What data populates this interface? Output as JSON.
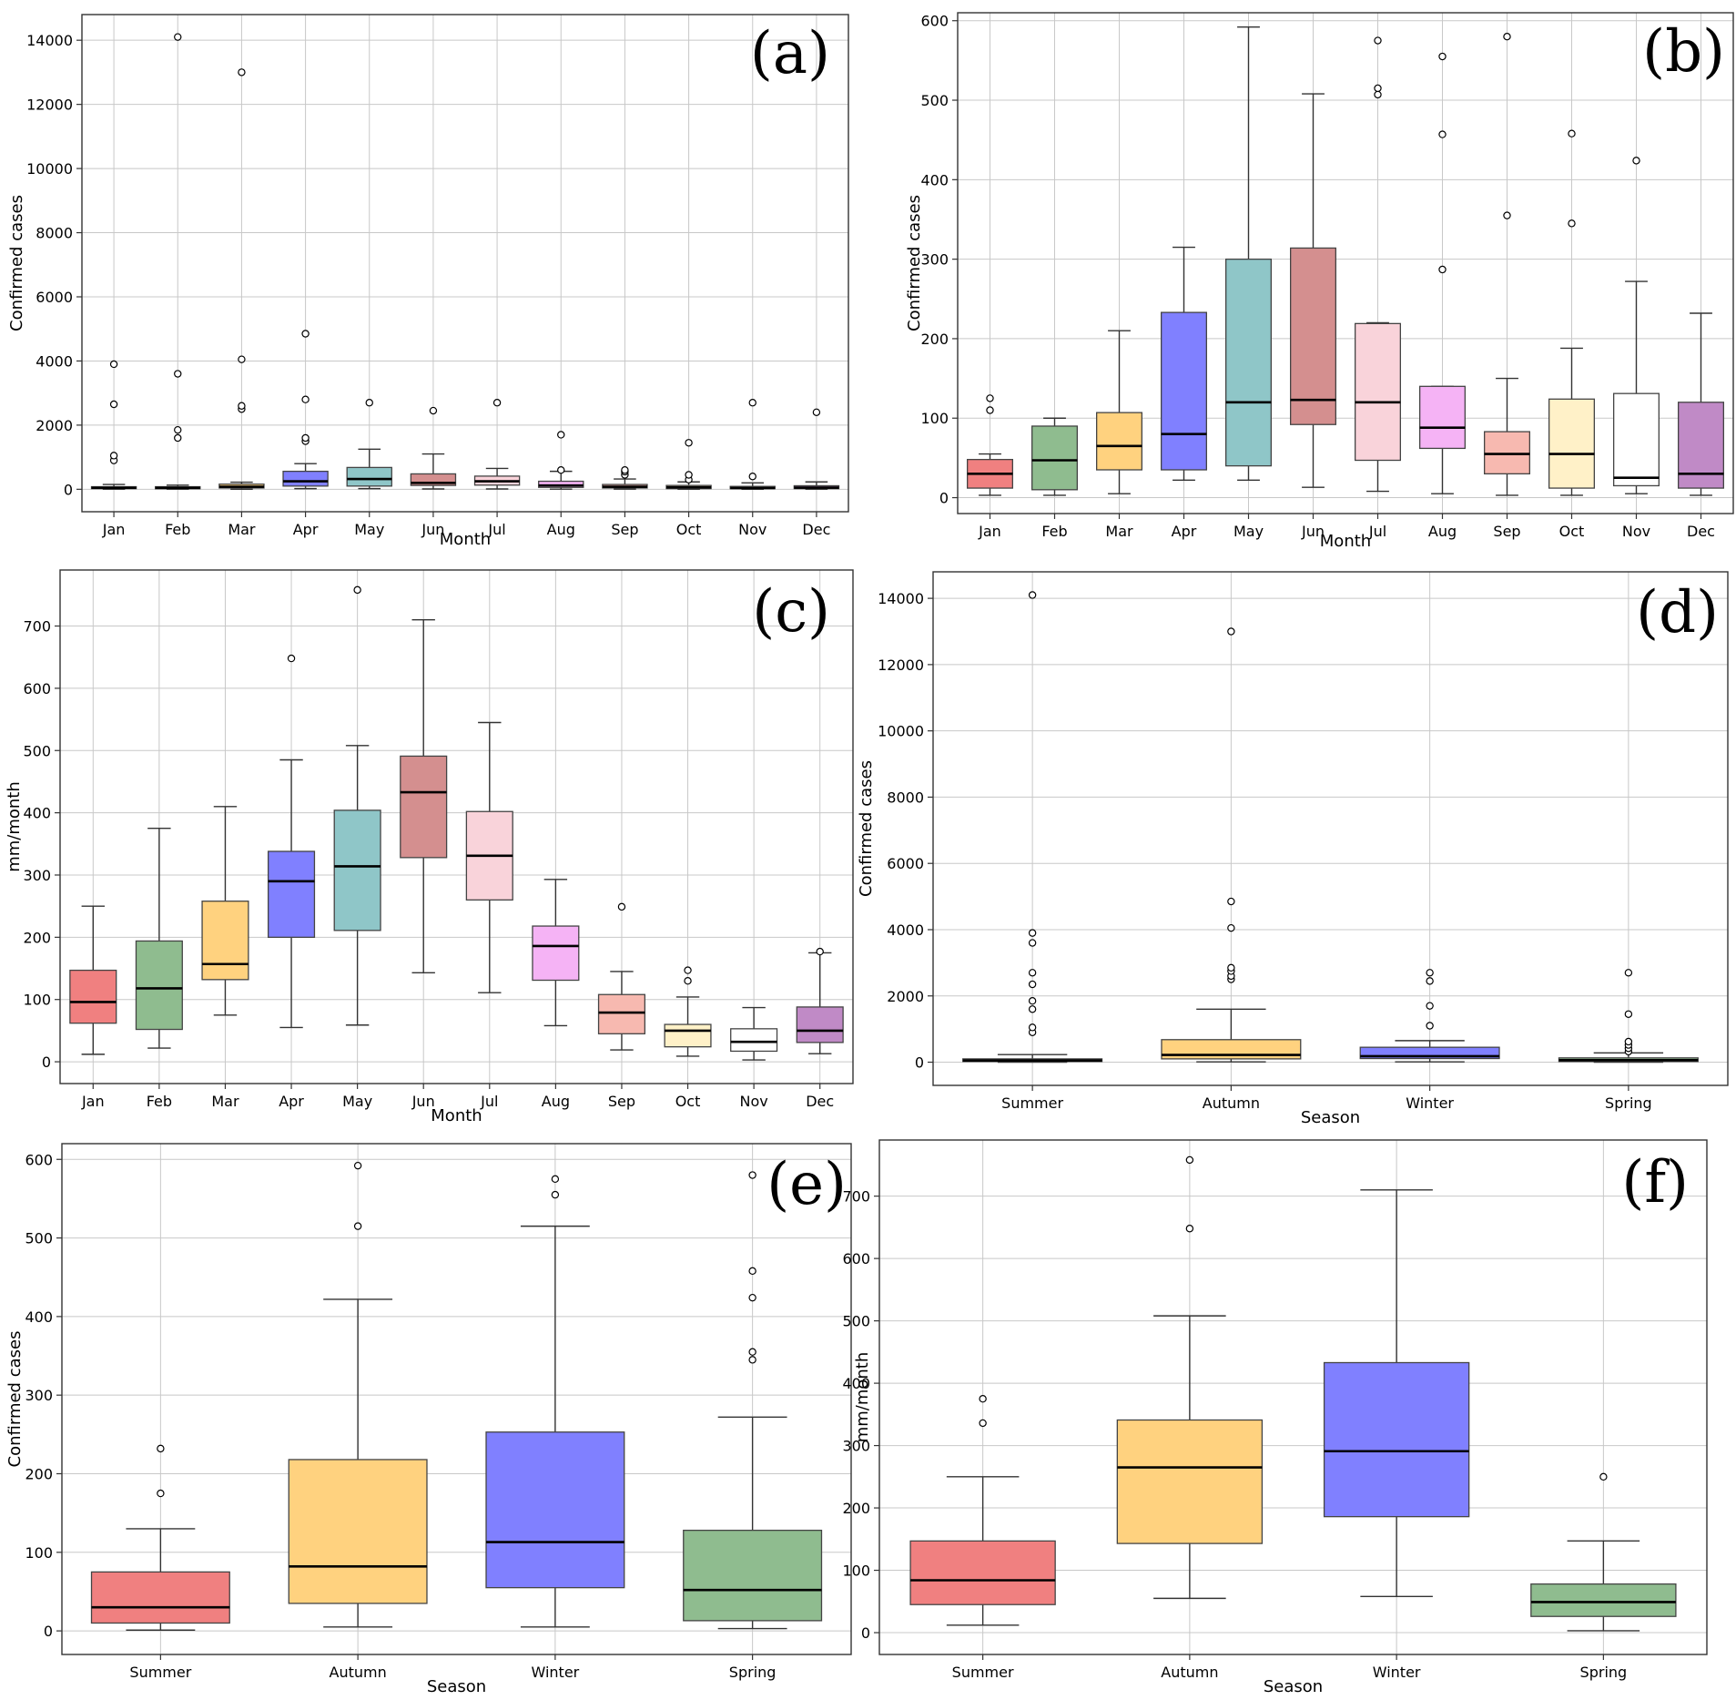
{
  "figure": {
    "background": "#ffffff"
  },
  "chart_data": [
    {
      "id": "a",
      "panel_label": "(a)",
      "type": "box",
      "xlabel": "Month",
      "ylabel": "Confirmed cases",
      "ylim": [
        -700,
        14800
      ],
      "yticks": [
        0,
        2000,
        4000,
        6000,
        8000,
        10000,
        12000,
        14000
      ],
      "yticklabels": [
        "0",
        "2000",
        "4000",
        "6000",
        "8000",
        "10000",
        "12000",
        "14000"
      ],
      "categories": [
        "Jan",
        "Feb",
        "Mar",
        "Apr",
        "May",
        "Jun",
        "Jul",
        "Aug",
        "Sep",
        "Oct",
        "Nov",
        "Dec"
      ],
      "colors": [
        "#f08080",
        "#8fbc8f",
        "#ffd27f",
        "#8080ff",
        "#8fc6c8",
        "#d48f8f",
        "#f9d3da",
        "#f5b3f5",
        "#f7b9b0",
        "#fff1c8",
        "#ffffff",
        "#c08ac6"
      ],
      "boxes": [
        {
          "whislo": 0,
          "q1": 20,
          "med": 45,
          "q3": 80,
          "whishi": 150,
          "fliers": [
            900,
            1050,
            2650,
            3900
          ]
        },
        {
          "whislo": 0,
          "q1": 15,
          "med": 45,
          "q3": 80,
          "whishi": 130,
          "fliers": [
            1600,
            1850,
            3600,
            14100
          ]
        },
        {
          "whislo": 0,
          "q1": 40,
          "med": 80,
          "q3": 160,
          "whishi": 220,
          "fliers": [
            2500,
            2600,
            4050,
            13000
          ]
        },
        {
          "whislo": 20,
          "q1": 100,
          "med": 250,
          "q3": 560,
          "whishi": 800,
          "fliers": [
            1500,
            1600,
            2800,
            4850
          ]
        },
        {
          "whislo": 20,
          "q1": 100,
          "med": 320,
          "q3": 680,
          "whishi": 1250,
          "fliers": [
            2700
          ]
        },
        {
          "whislo": 10,
          "q1": 120,
          "med": 200,
          "q3": 480,
          "whishi": 1100,
          "fliers": [
            2450
          ]
        },
        {
          "whislo": 10,
          "q1": 130,
          "med": 250,
          "q3": 410,
          "whishi": 650,
          "fliers": [
            2700
          ]
        },
        {
          "whislo": 5,
          "q1": 60,
          "med": 120,
          "q3": 250,
          "whishi": 560,
          "fliers": [
            600,
            1700
          ]
        },
        {
          "whislo": 5,
          "q1": 40,
          "med": 80,
          "q3": 150,
          "whishi": 320,
          "fliers": [
            450,
            550,
            600
          ]
        },
        {
          "whislo": 0,
          "q1": 20,
          "med": 60,
          "q3": 120,
          "whishi": 230,
          "fliers": [
            300,
            450,
            1450
          ]
        },
        {
          "whislo": 0,
          "q1": 20,
          "med": 40,
          "q3": 90,
          "whishi": 200,
          "fliers": [
            400,
            2700
          ]
        },
        {
          "whislo": 0,
          "q1": 20,
          "med": 50,
          "q3": 110,
          "whishi": 230,
          "fliers": [
            2400
          ]
        }
      ]
    },
    {
      "id": "b",
      "panel_label": "(b)",
      "type": "box",
      "xlabel": "Month",
      "ylabel": "Confirmed cases",
      "ylim": [
        -20,
        610
      ],
      "yticks": [
        0,
        100,
        200,
        300,
        400,
        500,
        600
      ],
      "yticklabels": [
        "0",
        "100",
        "200",
        "300",
        "400",
        "500",
        "600"
      ],
      "categories": [
        "Jan",
        "Feb",
        "Mar",
        "Apr",
        "May",
        "Jun",
        "Jul",
        "Aug",
        "Sep",
        "Oct",
        "Nov",
        "Dec"
      ],
      "colors": [
        "#f08080",
        "#8fbc8f",
        "#ffd27f",
        "#8080ff",
        "#8fc6c8",
        "#d48f8f",
        "#f9d3da",
        "#f5b3f5",
        "#f7b9b0",
        "#fff1c8",
        "#ffffff",
        "#c08ac6"
      ],
      "boxes": [
        {
          "whislo": 3,
          "q1": 12,
          "med": 30,
          "q3": 48,
          "whishi": 55,
          "fliers": [
            110,
            125
          ]
        },
        {
          "whislo": 3,
          "q1": 10,
          "med": 47,
          "q3": 90,
          "whishi": 100,
          "fliers": []
        },
        {
          "whislo": 5,
          "q1": 35,
          "med": 65,
          "q3": 107,
          "whishi": 210,
          "fliers": []
        },
        {
          "whislo": 22,
          "q1": 35,
          "med": 80,
          "q3": 233,
          "whishi": 315,
          "fliers": []
        },
        {
          "whislo": 22,
          "q1": 40,
          "med": 120,
          "q3": 300,
          "whishi": 592,
          "fliers": []
        },
        {
          "whislo": 13,
          "q1": 92,
          "med": 123,
          "q3": 314,
          "whishi": 508,
          "fliers": []
        },
        {
          "whislo": 8,
          "q1": 47,
          "med": 120,
          "q3": 219,
          "whishi": 220,
          "fliers": [
            507,
            515,
            575
          ]
        },
        {
          "whislo": 5,
          "q1": 62,
          "med": 88,
          "q3": 140,
          "whishi": 140,
          "fliers": [
            287,
            457,
            555
          ]
        },
        {
          "whislo": 3,
          "q1": 30,
          "med": 55,
          "q3": 83,
          "whishi": 150,
          "fliers": [
            355,
            580
          ]
        },
        {
          "whislo": 3,
          "q1": 12,
          "med": 55,
          "q3": 124,
          "whishi": 188,
          "fliers": [
            345,
            458
          ]
        },
        {
          "whislo": 5,
          "q1": 15,
          "med": 25,
          "q3": 131,
          "whishi": 272,
          "fliers": [
            424
          ]
        },
        {
          "whislo": 3,
          "q1": 12,
          "med": 30,
          "q3": 120,
          "whishi": 232,
          "fliers": []
        }
      ]
    },
    {
      "id": "c",
      "panel_label": "(c)",
      "type": "box",
      "xlabel": "Month",
      "ylabel": "mm/month",
      "ylim": [
        -35,
        790
      ],
      "yticks": [
        0,
        100,
        200,
        300,
        400,
        500,
        600,
        700
      ],
      "yticklabels": [
        "0",
        "100",
        "200",
        "300",
        "400",
        "500",
        "600",
        "700"
      ],
      "categories": [
        "Jan",
        "Feb",
        "Mar",
        "Apr",
        "May",
        "Jun",
        "Jul",
        "Aug",
        "Sep",
        "Oct",
        "Nov",
        "Dec"
      ],
      "colors": [
        "#f08080",
        "#8fbc8f",
        "#ffd27f",
        "#8080ff",
        "#8fc6c8",
        "#d48f8f",
        "#f9d3da",
        "#f5b3f5",
        "#f7b9b0",
        "#fff1c8",
        "#ffffff",
        "#c08ac6"
      ],
      "boxes": [
        {
          "whislo": 12,
          "q1": 62,
          "med": 96,
          "q3": 147,
          "whishi": 250,
          "fliers": []
        },
        {
          "whislo": 22,
          "q1": 52,
          "med": 118,
          "q3": 194,
          "whishi": 375,
          "fliers": []
        },
        {
          "whislo": 75,
          "q1": 132,
          "med": 157,
          "q3": 258,
          "whishi": 410,
          "fliers": []
        },
        {
          "whislo": 55,
          "q1": 200,
          "med": 290,
          "q3": 338,
          "whishi": 485,
          "fliers": [
            648
          ]
        },
        {
          "whislo": 59,
          "q1": 211,
          "med": 314,
          "q3": 404,
          "whishi": 508,
          "fliers": [
            758
          ]
        },
        {
          "whislo": 143,
          "q1": 328,
          "med": 433,
          "q3": 491,
          "whishi": 710,
          "fliers": []
        },
        {
          "whislo": 111,
          "q1": 260,
          "med": 331,
          "q3": 402,
          "whishi": 545,
          "fliers": []
        },
        {
          "whislo": 58,
          "q1": 131,
          "med": 186,
          "q3": 218,
          "whishi": 293,
          "fliers": []
        },
        {
          "whislo": 19,
          "q1": 45,
          "med": 79,
          "q3": 108,
          "whishi": 145,
          "fliers": [
            249
          ]
        },
        {
          "whislo": 9,
          "q1": 24,
          "med": 50,
          "q3": 60,
          "whishi": 104,
          "fliers": [
            130,
            147
          ]
        },
        {
          "whislo": 3,
          "q1": 17,
          "med": 32,
          "q3": 53,
          "whishi": 87,
          "fliers": []
        },
        {
          "whislo": 13,
          "q1": 31,
          "med": 50,
          "q3": 88,
          "whishi": 175,
          "fliers": [
            177
          ]
        }
      ]
    },
    {
      "id": "d",
      "panel_label": "(d)",
      "type": "box",
      "xlabel": "Season",
      "ylabel": "Confirmed cases",
      "ylim": [
        -700,
        14800
      ],
      "yticks": [
        0,
        2000,
        4000,
        6000,
        8000,
        10000,
        12000,
        14000
      ],
      "yticklabels": [
        "0",
        "2000",
        "4000",
        "6000",
        "8000",
        "10000",
        "12000",
        "14000"
      ],
      "categories": [
        "Summer",
        "Autumn",
        "Winter",
        "Spring"
      ],
      "colors": [
        "#f08080",
        "#ffd27f",
        "#8080ff",
        "#8fbc8f"
      ],
      "boxes": [
        {
          "whislo": 0,
          "q1": 20,
          "med": 50,
          "q3": 100,
          "whishi": 230,
          "fliers": [
            900,
            1050,
            1600,
            1850,
            2350,
            2700,
            3600,
            3900,
            14100
          ]
        },
        {
          "whislo": 10,
          "q1": 100,
          "med": 220,
          "q3": 680,
          "whishi": 1600,
          "fliers": [
            2500,
            2600,
            2750,
            2850,
            4050,
            4850,
            13000
          ]
        },
        {
          "whislo": 10,
          "q1": 110,
          "med": 180,
          "q3": 450,
          "whishi": 650,
          "fliers": [
            1100,
            1700,
            2450,
            2700
          ]
        },
        {
          "whislo": 0,
          "q1": 20,
          "med": 60,
          "q3": 130,
          "whishi": 280,
          "fliers": [
            320,
            420,
            520,
            620,
            1450,
            2700
          ]
        }
      ]
    },
    {
      "id": "e",
      "panel_label": "(e)",
      "type": "box",
      "xlabel": "Season",
      "ylabel": "Confirmed cases",
      "ylim": [
        -30,
        620
      ],
      "yticks": [
        0,
        100,
        200,
        300,
        400,
        500,
        600
      ],
      "yticklabels": [
        "0",
        "100",
        "200",
        "300",
        "400",
        "500",
        "600"
      ],
      "categories": [
        "Summer",
        "Autumn",
        "Winter",
        "Spring"
      ],
      "colors": [
        "#f08080",
        "#ffd27f",
        "#8080ff",
        "#8fbc8f"
      ],
      "boxes": [
        {
          "whislo": 1,
          "q1": 10,
          "med": 30,
          "q3": 75,
          "whishi": 130,
          "fliers": [
            175,
            232
          ]
        },
        {
          "whislo": 5,
          "q1": 35,
          "med": 82,
          "q3": 218,
          "whishi": 422,
          "fliers": [
            515,
            592
          ]
        },
        {
          "whislo": 5,
          "q1": 55,
          "med": 113,
          "q3": 253,
          "whishi": 515,
          "fliers": [
            555,
            575
          ]
        },
        {
          "whislo": 3,
          "q1": 13,
          "med": 52,
          "q3": 128,
          "whishi": 272,
          "fliers": [
            345,
            355,
            424,
            458,
            580
          ]
        }
      ]
    },
    {
      "id": "f",
      "panel_label": "(f)",
      "type": "box",
      "xlabel": "Season",
      "ylabel": "mm/month",
      "ylim": [
        -35,
        790
      ],
      "yticks": [
        0,
        100,
        200,
        300,
        400,
        500,
        600,
        700
      ],
      "yticklabels": [
        "0",
        "100",
        "200",
        "300",
        "400",
        "500",
        "600",
        "700"
      ],
      "categories": [
        "Summer",
        "Autumn",
        "Winter",
        "Spring"
      ],
      "colors": [
        "#f08080",
        "#ffd27f",
        "#8080ff",
        "#8fbc8f"
      ],
      "boxes": [
        {
          "whislo": 12,
          "q1": 45,
          "med": 84,
          "q3": 147,
          "whishi": 250,
          "fliers": [
            336,
            375
          ]
        },
        {
          "whislo": 55,
          "q1": 143,
          "med": 265,
          "q3": 341,
          "whishi": 508,
          "fliers": [
            648,
            758
          ]
        },
        {
          "whislo": 58,
          "q1": 186,
          "med": 291,
          "q3": 433,
          "whishi": 710,
          "fliers": []
        },
        {
          "whislo": 3,
          "q1": 26,
          "med": 49,
          "q3": 78,
          "whishi": 147,
          "fliers": [
            250
          ]
        }
      ]
    }
  ]
}
